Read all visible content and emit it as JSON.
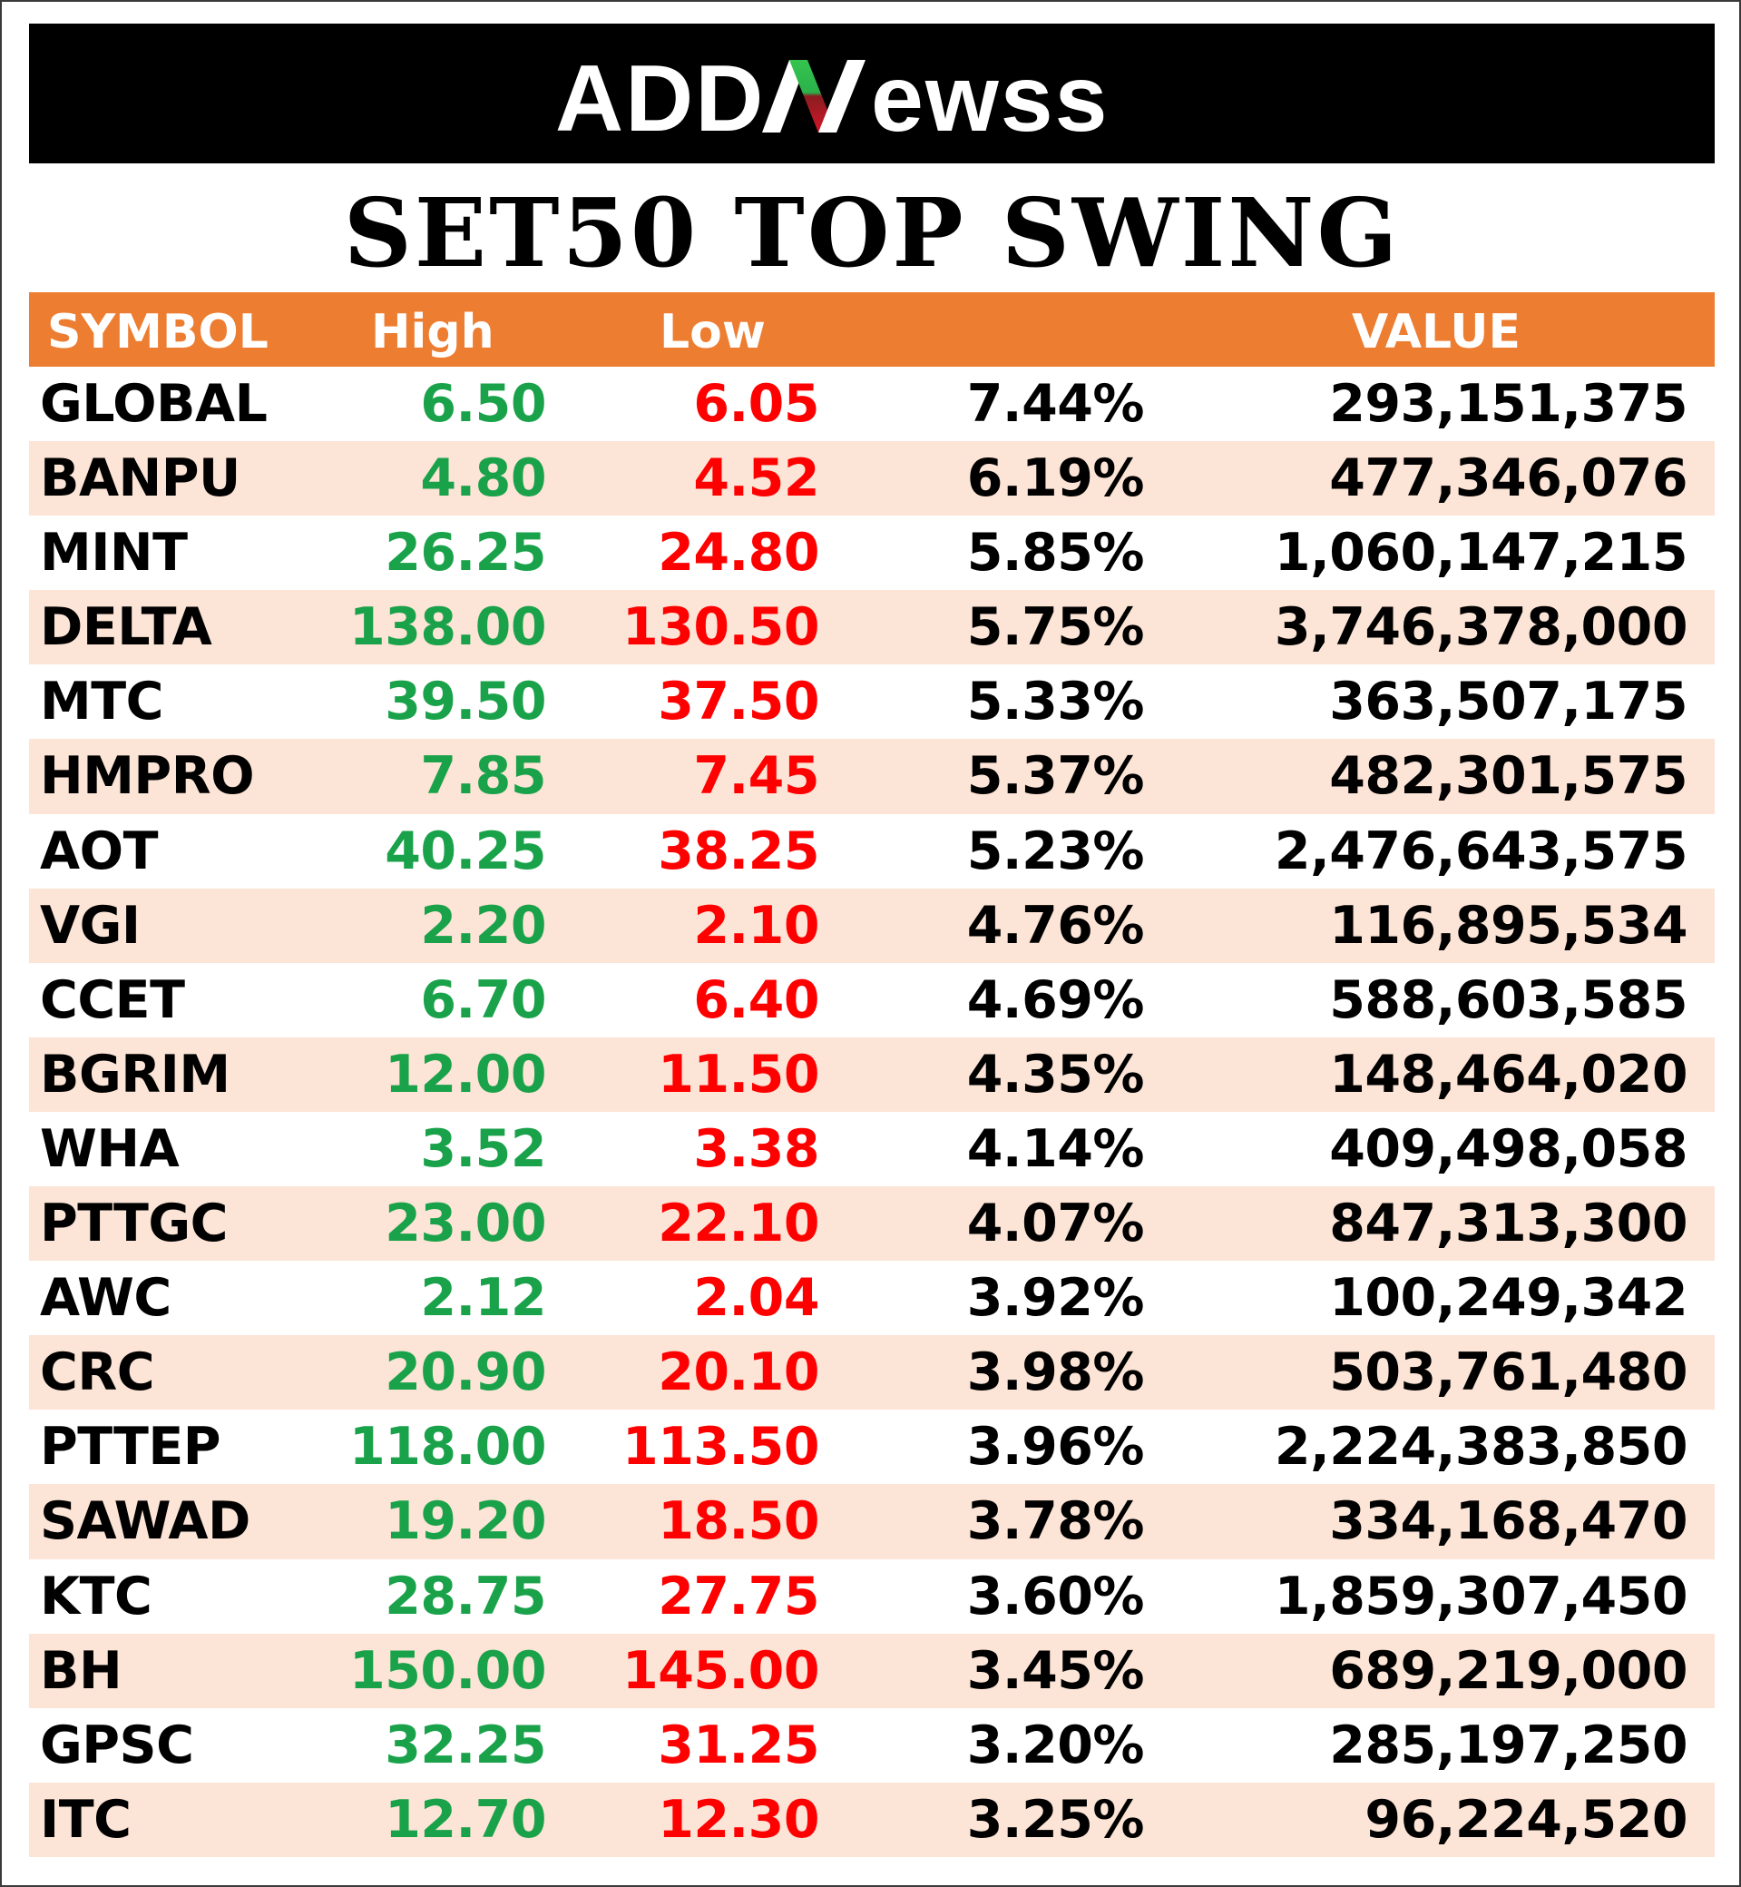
{
  "brand": {
    "logo_text": "ADDNewss"
  },
  "title": "SET50 TOP SWING",
  "colors": {
    "banner": "#000000",
    "header": "#ed7d31",
    "shaded_row": "#fce4d6",
    "high": "#1aa24a",
    "low": "#ff0000"
  },
  "table": {
    "headers": {
      "symbol": "SYMBOL",
      "high": "High",
      "low": "Low",
      "pct": "",
      "value": "VALUE"
    },
    "rows": [
      {
        "symbol": "GLOBAL",
        "high": "6.50",
        "low": "6.05",
        "pct": "7.44%",
        "value": "293,151,375"
      },
      {
        "symbol": "BANPU",
        "high": "4.80",
        "low": "4.52",
        "pct": "6.19%",
        "value": "477,346,076"
      },
      {
        "symbol": "MINT",
        "high": "26.25",
        "low": "24.80",
        "pct": "5.85%",
        "value": "1,060,147,215"
      },
      {
        "symbol": "DELTA",
        "high": "138.00",
        "low": "130.50",
        "pct": "5.75%",
        "value": "3,746,378,000"
      },
      {
        "symbol": "MTC",
        "high": "39.50",
        "low": "37.50",
        "pct": "5.33%",
        "value": "363,507,175"
      },
      {
        "symbol": "HMPRO",
        "high": "7.85",
        "low": "7.45",
        "pct": "5.37%",
        "value": "482,301,575"
      },
      {
        "symbol": "AOT",
        "high": "40.25",
        "low": "38.25",
        "pct": "5.23%",
        "value": "2,476,643,575"
      },
      {
        "symbol": "VGI",
        "high": "2.20",
        "low": "2.10",
        "pct": "4.76%",
        "value": "116,895,534"
      },
      {
        "symbol": "CCET",
        "high": "6.70",
        "low": "6.40",
        "pct": "4.69%",
        "value": "588,603,585"
      },
      {
        "symbol": "BGRIM",
        "high": "12.00",
        "low": "11.50",
        "pct": "4.35%",
        "value": "148,464,020"
      },
      {
        "symbol": "WHA",
        "high": "3.52",
        "low": "3.38",
        "pct": "4.14%",
        "value": "409,498,058"
      },
      {
        "symbol": "PTTGC",
        "high": "23.00",
        "low": "22.10",
        "pct": "4.07%",
        "value": "847,313,300"
      },
      {
        "symbol": "AWC",
        "high": "2.12",
        "low": "2.04",
        "pct": "3.92%",
        "value": "100,249,342"
      },
      {
        "symbol": "CRC",
        "high": "20.90",
        "low": "20.10",
        "pct": "3.98%",
        "value": "503,761,480"
      },
      {
        "symbol": "PTTEP",
        "high": "118.00",
        "low": "113.50",
        "pct": "3.96%",
        "value": "2,224,383,850"
      },
      {
        "symbol": "SAWAD",
        "high": "19.20",
        "low": "18.50",
        "pct": "3.78%",
        "value": "334,168,470"
      },
      {
        "symbol": "KTC",
        "high": "28.75",
        "low": "27.75",
        "pct": "3.60%",
        "value": "1,859,307,450"
      },
      {
        "symbol": "BH",
        "high": "150.00",
        "low": "145.00",
        "pct": "3.45%",
        "value": "689,219,000"
      },
      {
        "symbol": "GPSC",
        "high": "32.25",
        "low": "31.25",
        "pct": "3.20%",
        "value": "285,197,250"
      },
      {
        "symbol": "ITC",
        "high": "12.70",
        "low": "12.30",
        "pct": "3.25%",
        "value": "96,224,520"
      }
    ]
  }
}
